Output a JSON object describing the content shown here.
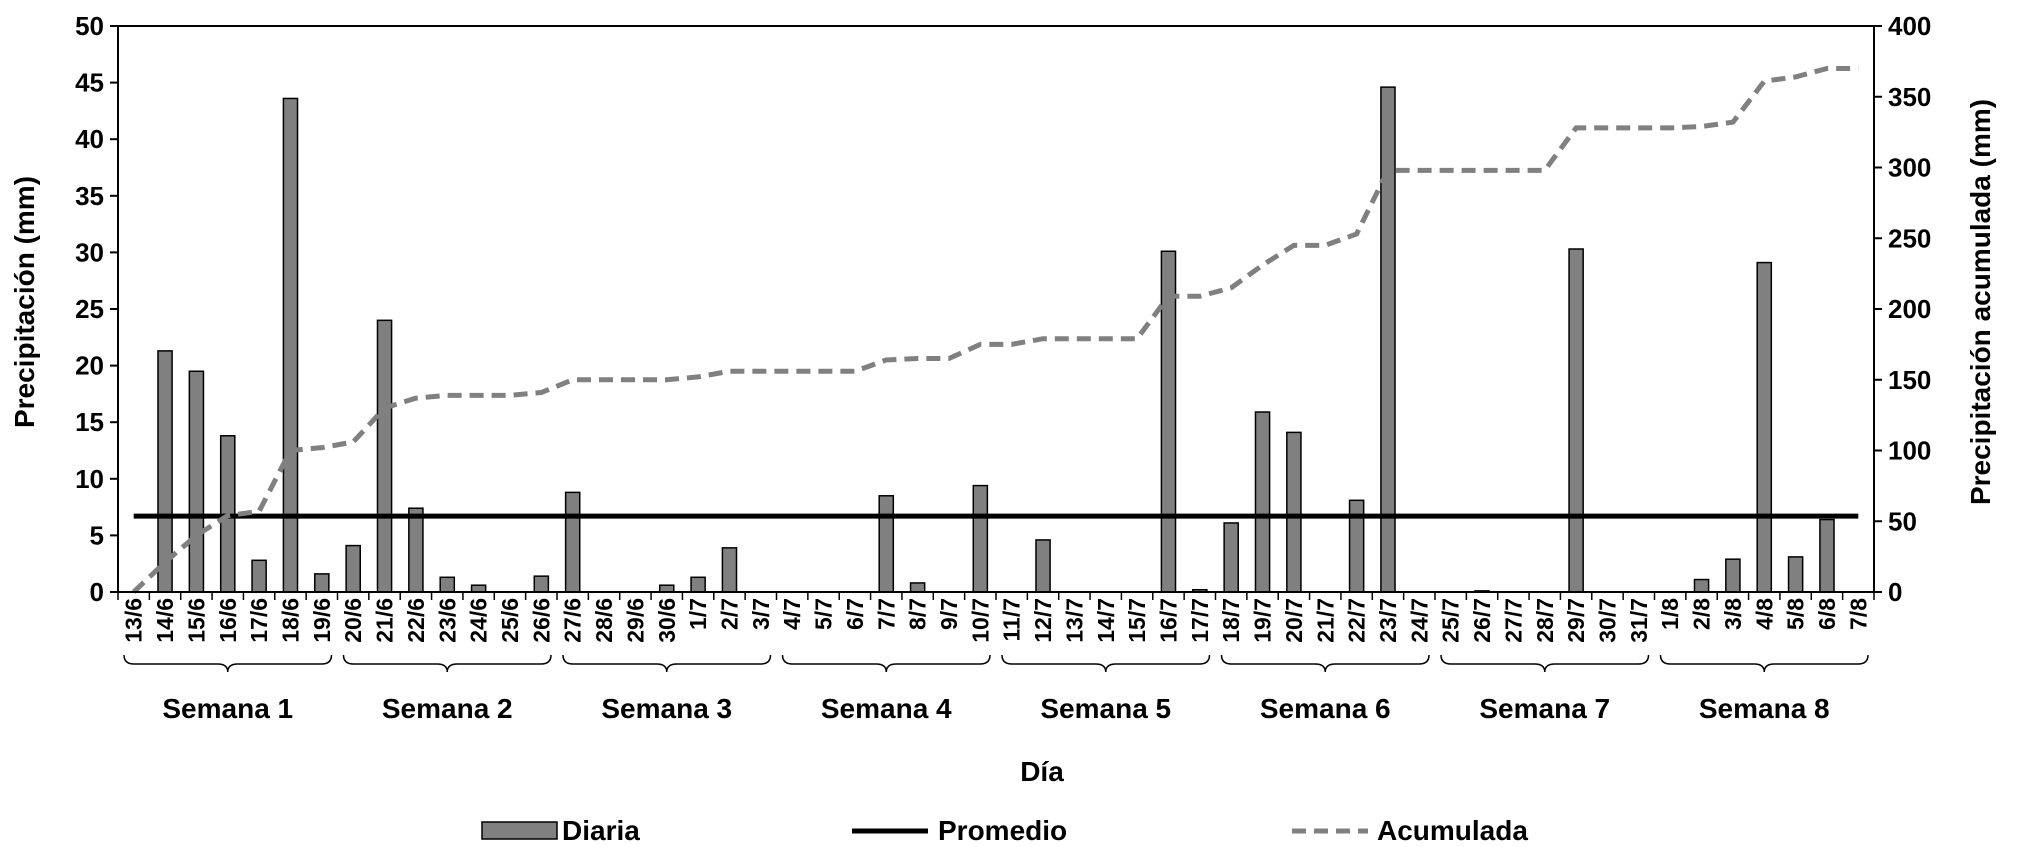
{
  "chart_data": {
    "type": "bar",
    "xlabel": "Día",
    "ylabel": "Precipitación (mm)",
    "y2label": "Precipitación acumulada (mm)",
    "ylim": [
      0,
      50
    ],
    "yticks": [
      0,
      5,
      10,
      15,
      20,
      25,
      30,
      35,
      40,
      45,
      50
    ],
    "y2lim": [
      0,
      400
    ],
    "y2ticks": [
      0,
      50,
      100,
      150,
      200,
      250,
      300,
      350,
      400
    ],
    "grid": false,
    "legend_position": "bottom",
    "categories": [
      "13/6",
      "14/6",
      "15/6",
      "16/6",
      "17/6",
      "18/6",
      "19/6",
      "20/6",
      "21/6",
      "22/6",
      "23/6",
      "24/6",
      "25/6",
      "26/6",
      "27/6",
      "28/6",
      "29/6",
      "30/6",
      "1/7",
      "2/7",
      "3/7",
      "4/7",
      "5/7",
      "6/7",
      "7/7",
      "8/7",
      "9/7",
      "10/7",
      "11/7",
      "12/7",
      "13/7",
      "14/7",
      "15/7",
      "16/7",
      "17/7",
      "18/7",
      "19/7",
      "20/7",
      "21/7",
      "22/7",
      "23/7",
      "24/7",
      "25/7",
      "26/7",
      "27/7",
      "28/7",
      "29/7",
      "30/7",
      "31/7",
      "1/8",
      "2/8",
      "3/8",
      "4/8",
      "5/8",
      "6/8",
      "7/8"
    ],
    "series": [
      {
        "name": "Diaria",
        "type": "bar",
        "axis": "left",
        "color": "#808080",
        "values": [
          0,
          21.3,
          19.5,
          13.8,
          2.8,
          43.6,
          1.6,
          4.1,
          24.0,
          7.4,
          1.3,
          0.6,
          0,
          1.4,
          8.8,
          0,
          0,
          0.6,
          1.3,
          3.9,
          0,
          0,
          0,
          0,
          8.5,
          0.8,
          0,
          9.4,
          0,
          4.6,
          0,
          0,
          0,
          30.1,
          0.2,
          6.1,
          15.9,
          14.1,
          0,
          8.1,
          44.6,
          0,
          0,
          0.1,
          0,
          0,
          30.3,
          0,
          0,
          0,
          1.1,
          2.9,
          29.1,
          3.1,
          6.4,
          0
        ]
      },
      {
        "name": "Promedio",
        "type": "line",
        "axis": "left",
        "color": "#000000",
        "style": "solid",
        "values": [
          6.7,
          6.7,
          6.7,
          6.7,
          6.7,
          6.7,
          6.7,
          6.7,
          6.7,
          6.7,
          6.7,
          6.7,
          6.7,
          6.7,
          6.7,
          6.7,
          6.7,
          6.7,
          6.7,
          6.7,
          6.7,
          6.7,
          6.7,
          6.7,
          6.7,
          6.7,
          6.7,
          6.7,
          6.7,
          6.7,
          6.7,
          6.7,
          6.7,
          6.7,
          6.7,
          6.7,
          6.7,
          6.7,
          6.7,
          6.7,
          6.7,
          6.7,
          6.7,
          6.7,
          6.7,
          6.7,
          6.7,
          6.7,
          6.7,
          6.7,
          6.7,
          6.7,
          6.7,
          6.7,
          6.7,
          6.7
        ]
      },
      {
        "name": "Acumulada",
        "type": "line",
        "axis": "right",
        "color": "#808080",
        "style": "dashed",
        "values": [
          0,
          21,
          40,
          54,
          57,
          100,
          102,
          106,
          130,
          137,
          139,
          139,
          139,
          141,
          150,
          150,
          150,
          150,
          152,
          156,
          156,
          156,
          156,
          156,
          164,
          165,
          165,
          175,
          175,
          179,
          179,
          179,
          179,
          209,
          209,
          215,
          231,
          245,
          245,
          253,
          298,
          298,
          298,
          298,
          298,
          298,
          328,
          328,
          328,
          328,
          329,
          332,
          361,
          364,
          370,
          370
        ]
      }
    ],
    "weeks": [
      {
        "label": "Semana 1",
        "start": 0,
        "end": 6
      },
      {
        "label": "Semana 2",
        "start": 7,
        "end": 13
      },
      {
        "label": "Semana 3",
        "start": 14,
        "end": 20
      },
      {
        "label": "Semana 4",
        "start": 21,
        "end": 27
      },
      {
        "label": "Semana 5",
        "start": 28,
        "end": 34
      },
      {
        "label": "Semana 6",
        "start": 35,
        "end": 41
      },
      {
        "label": "Semana 7",
        "start": 42,
        "end": 48
      },
      {
        "label": "Semana 8",
        "start": 49,
        "end": 55
      }
    ]
  }
}
